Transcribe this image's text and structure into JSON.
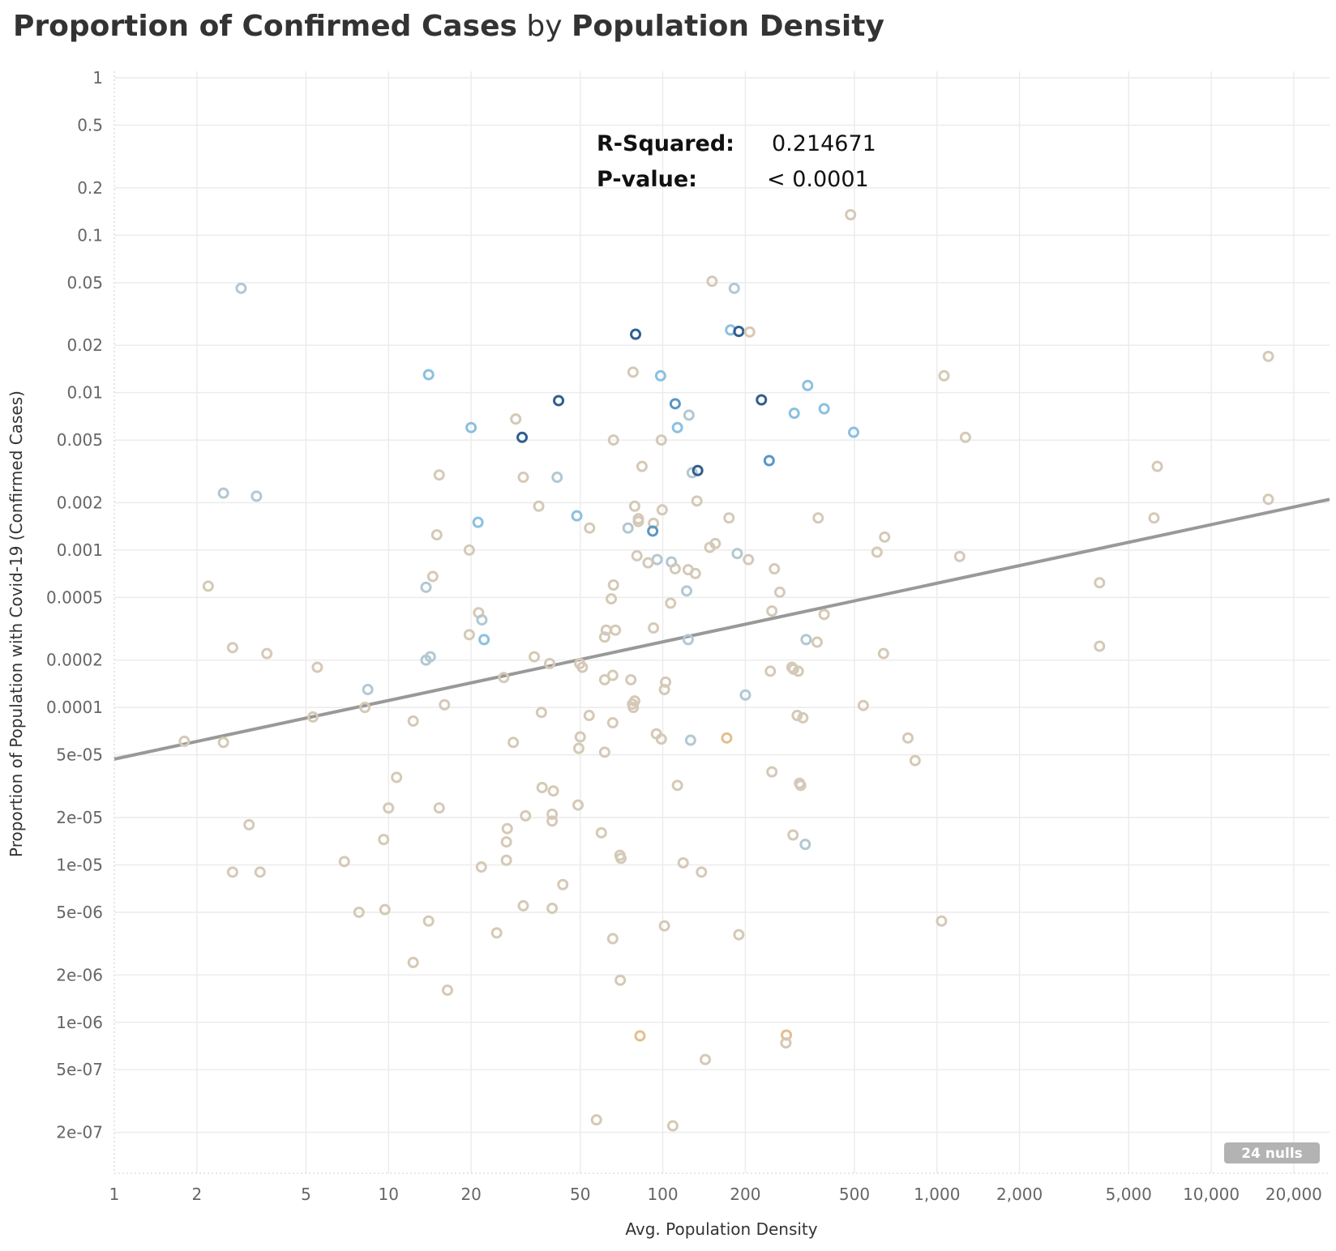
{
  "title": {
    "part1": "Proportion of Confirmed Cases",
    "part2": " by ",
    "part3": "Population Density"
  },
  "stats": {
    "r_squared_label": "R-Squared:",
    "r_squared_value": "0.214671",
    "p_value_label": "P-value:",
    "p_value_value": "< 0.0001"
  },
  "nulls_badge": "24 nulls",
  "chart_data": {
    "type": "scatter",
    "xlabel": "Avg. Population Density",
    "ylabel": "Proportion of Population with Covid-19 (Confirmed Cases)",
    "x_scale": "log",
    "y_scale": "log",
    "xlim": [
      1,
      27000
    ],
    "ylim": [
      1.1e-07,
      1.1
    ],
    "grid": true,
    "x_ticks": [
      {
        "value": 1,
        "label": "1"
      },
      {
        "value": 2,
        "label": "2"
      },
      {
        "value": 5,
        "label": "5"
      },
      {
        "value": 10,
        "label": "10"
      },
      {
        "value": 20,
        "label": "20"
      },
      {
        "value": 50,
        "label": "50"
      },
      {
        "value": 100,
        "label": "100"
      },
      {
        "value": 200,
        "label": "200"
      },
      {
        "value": 500,
        "label": "500"
      },
      {
        "value": 1000,
        "label": "1,000"
      },
      {
        "value": 2000,
        "label": "2,000"
      },
      {
        "value": 5000,
        "label": "5,000"
      },
      {
        "value": 10000,
        "label": "10,000"
      },
      {
        "value": 20000,
        "label": "20,000"
      }
    ],
    "y_ticks": [
      {
        "value": 1,
        "label": "1"
      },
      {
        "value": 0.5,
        "label": "0.5"
      },
      {
        "value": 0.2,
        "label": "0.2"
      },
      {
        "value": 0.1,
        "label": "0.1"
      },
      {
        "value": 0.05,
        "label": "0.05"
      },
      {
        "value": 0.02,
        "label": "0.02"
      },
      {
        "value": 0.01,
        "label": "0.01"
      },
      {
        "value": 0.005,
        "label": "0.005"
      },
      {
        "value": 0.002,
        "label": "0.002"
      },
      {
        "value": 0.001,
        "label": "0.001"
      },
      {
        "value": 0.0005,
        "label": "0.0005"
      },
      {
        "value": 0.0002,
        "label": "0.0002"
      },
      {
        "value": 0.0001,
        "label": "0.0001"
      },
      {
        "value": 5e-05,
        "label": "5e-05"
      },
      {
        "value": 2e-05,
        "label": "2e-05"
      },
      {
        "value": 1e-05,
        "label": "1e-05"
      },
      {
        "value": 5e-06,
        "label": "5e-06"
      },
      {
        "value": 2e-06,
        "label": "2e-06"
      },
      {
        "value": 1e-06,
        "label": "1e-06"
      },
      {
        "value": 5e-07,
        "label": "5e-07"
      },
      {
        "value": 2e-07,
        "label": "2e-07"
      }
    ],
    "trend_line": {
      "x": [
        1,
        27000
      ],
      "y": [
        4.7e-05,
        0.0021
      ],
      "color": "#999999"
    },
    "colors": {
      "beige": "#d5c9b7",
      "tan": "#e3bf8e",
      "grayblue": "#b2c8d2",
      "lightblue": "#8cc0e0",
      "midblue": "#5b96c6",
      "darkblue": "#2e5f8f"
    },
    "points": [
      {
        "x": 2.9,
        "y": 0.046,
        "c": "grayblue"
      },
      {
        "x": 2.5,
        "y": 0.0023,
        "c": "grayblue"
      },
      {
        "x": 3.3,
        "y": 0.0022,
        "c": "grayblue"
      },
      {
        "x": 2.2,
        "y": 0.00059,
        "c": "beige"
      },
      {
        "x": 2.7,
        "y": 0.00024,
        "c": "beige"
      },
      {
        "x": 3.6,
        "y": 0.00022,
        "c": "beige"
      },
      {
        "x": 1.8,
        "y": 6.1e-05,
        "c": "beige"
      },
      {
        "x": 2.5,
        "y": 6e-05,
        "c": "beige"
      },
      {
        "x": 3.1,
        "y": 1.8e-05,
        "c": "beige"
      },
      {
        "x": 2.7,
        "y": 9e-06,
        "c": "beige"
      },
      {
        "x": 3.4,
        "y": 9e-06,
        "c": "beige"
      },
      {
        "x": 5.5,
        "y": 0.00018,
        "c": "beige"
      },
      {
        "x": 5.3,
        "y": 8.7e-05,
        "c": "beige"
      },
      {
        "x": 8.4,
        "y": 0.00013,
        "c": "grayblue"
      },
      {
        "x": 8.2,
        "y": 0.0001,
        "c": "beige"
      },
      {
        "x": 6.9,
        "y": 1.05e-05,
        "c": "beige"
      },
      {
        "x": 7.8,
        "y": 5e-06,
        "c": "beige"
      },
      {
        "x": 9.7,
        "y": 5.2e-06,
        "c": "beige"
      },
      {
        "x": 9.6,
        "y": 1.45e-05,
        "c": "beige"
      },
      {
        "x": 10.0,
        "y": 2.3e-05,
        "c": "beige"
      },
      {
        "x": 10.7,
        "y": 3.6e-05,
        "c": "beige"
      },
      {
        "x": 12.3,
        "y": 8.2e-05,
        "c": "beige"
      },
      {
        "x": 12.3,
        "y": 2.4e-06,
        "c": "beige"
      },
      {
        "x": 14.0,
        "y": 0.013,
        "c": "lightblue"
      },
      {
        "x": 15.3,
        "y": 0.003,
        "c": "beige"
      },
      {
        "x": 15.0,
        "y": 0.00125,
        "c": "beige"
      },
      {
        "x": 14.5,
        "y": 0.00068,
        "c": "beige"
      },
      {
        "x": 13.7,
        "y": 0.00058,
        "c": "grayblue"
      },
      {
        "x": 14.2,
        "y": 0.00021,
        "c": "grayblue"
      },
      {
        "x": 13.7,
        "y": 0.0002,
        "c": "grayblue"
      },
      {
        "x": 16.0,
        "y": 0.000104,
        "c": "beige"
      },
      {
        "x": 15.3,
        "y": 2.3e-05,
        "c": "beige"
      },
      {
        "x": 14.0,
        "y": 4.4e-06,
        "c": "beige"
      },
      {
        "x": 16.4,
        "y": 1.6e-06,
        "c": "beige"
      },
      {
        "x": 20.0,
        "y": 0.006,
        "c": "lightblue"
      },
      {
        "x": 21.2,
        "y": 0.0015,
        "c": "lightblue"
      },
      {
        "x": 19.7,
        "y": 0.001,
        "c": "beige"
      },
      {
        "x": 21.3,
        "y": 0.0004,
        "c": "beige"
      },
      {
        "x": 21.9,
        "y": 0.00036,
        "c": "grayblue"
      },
      {
        "x": 19.7,
        "y": 0.00029,
        "c": "beige"
      },
      {
        "x": 22.3,
        "y": 0.00027,
        "c": "lightblue"
      },
      {
        "x": 21.8,
        "y": 9.7e-06,
        "c": "beige"
      },
      {
        "x": 24.8,
        "y": 3.7e-06,
        "c": "beige"
      },
      {
        "x": 26.3,
        "y": 0.000155,
        "c": "beige"
      },
      {
        "x": 27.1,
        "y": 1.7e-05,
        "c": "beige"
      },
      {
        "x": 26.9,
        "y": 1.4e-05,
        "c": "beige"
      },
      {
        "x": 26.9,
        "y": 1.07e-05,
        "c": "beige"
      },
      {
        "x": 28.5,
        "y": 6e-05,
        "c": "beige"
      },
      {
        "x": 29.1,
        "y": 0.0068,
        "c": "beige"
      },
      {
        "x": 30.7,
        "y": 0.0052,
        "c": "darkblue"
      },
      {
        "x": 31.0,
        "y": 0.0029,
        "c": "beige"
      },
      {
        "x": 31.6,
        "y": 2.05e-05,
        "c": "beige"
      },
      {
        "x": 31.0,
        "y": 5.5e-06,
        "c": "beige"
      },
      {
        "x": 34.0,
        "y": 0.00021,
        "c": "beige"
      },
      {
        "x": 35.3,
        "y": 0.0019,
        "c": "beige"
      },
      {
        "x": 36.1,
        "y": 9.3e-05,
        "c": "beige"
      },
      {
        "x": 36.3,
        "y": 3.1e-05,
        "c": "beige"
      },
      {
        "x": 38.7,
        "y": 0.00019,
        "c": "beige"
      },
      {
        "x": 39.9,
        "y": 2.95e-05,
        "c": "beige"
      },
      {
        "x": 39.5,
        "y": 2.1e-05,
        "c": "beige"
      },
      {
        "x": 39.5,
        "y": 1.9e-05,
        "c": "beige"
      },
      {
        "x": 39.5,
        "y": 5.3e-06,
        "c": "beige"
      },
      {
        "x": 41.7,
        "y": 0.0089,
        "c": "darkblue"
      },
      {
        "x": 41.2,
        "y": 0.0029,
        "c": "grayblue"
      },
      {
        "x": 43.2,
        "y": 7.5e-06,
        "c": "beige"
      },
      {
        "x": 48.6,
        "y": 0.00165,
        "c": "lightblue"
      },
      {
        "x": 49.8,
        "y": 0.00019,
        "c": "beige"
      },
      {
        "x": 50.9,
        "y": 0.00018,
        "c": "beige"
      },
      {
        "x": 50.0,
        "y": 6.5e-05,
        "c": "beige"
      },
      {
        "x": 49.4,
        "y": 5.5e-05,
        "c": "beige"
      },
      {
        "x": 49.1,
        "y": 2.4e-05,
        "c": "beige"
      },
      {
        "x": 54.1,
        "y": 0.00138,
        "c": "beige"
      },
      {
        "x": 53.9,
        "y": 8.9e-05,
        "c": "beige"
      },
      {
        "x": 57.3,
        "y": 2.4e-07,
        "c": "beige"
      },
      {
        "x": 59.7,
        "y": 1.6e-05,
        "c": "beige"
      },
      {
        "x": 66.1,
        "y": 0.005,
        "c": "beige"
      },
      {
        "x": 66.1,
        "y": 0.0006,
        "c": "beige"
      },
      {
        "x": 64.9,
        "y": 0.00049,
        "c": "beige"
      },
      {
        "x": 62.2,
        "y": 0.00031,
        "c": "beige"
      },
      {
        "x": 67.2,
        "y": 0.00031,
        "c": "beige"
      },
      {
        "x": 61.4,
        "y": 0.00028,
        "c": "beige"
      },
      {
        "x": 65.7,
        "y": 0.00016,
        "c": "beige"
      },
      {
        "x": 61.4,
        "y": 0.00015,
        "c": "beige"
      },
      {
        "x": 65.7,
        "y": 8e-05,
        "c": "beige"
      },
      {
        "x": 61.4,
        "y": 5.2e-05,
        "c": "beige"
      },
      {
        "x": 69.8,
        "y": 1.15e-05,
        "c": "beige"
      },
      {
        "x": 70.4,
        "y": 1.1e-05,
        "c": "beige"
      },
      {
        "x": 65.7,
        "y": 3.4e-06,
        "c": "beige"
      },
      {
        "x": 70.0,
        "y": 1.85e-06,
        "c": "beige"
      },
      {
        "x": 79.6,
        "y": 0.0235,
        "c": "darkblue"
      },
      {
        "x": 77.9,
        "y": 0.0135,
        "c": "beige"
      },
      {
        "x": 84.0,
        "y": 0.0034,
        "c": "beige"
      },
      {
        "x": 79.0,
        "y": 0.0019,
        "c": "beige"
      },
      {
        "x": 81.5,
        "y": 0.00158,
        "c": "beige"
      },
      {
        "x": 81.5,
        "y": 0.00152,
        "c": "beige"
      },
      {
        "x": 74.7,
        "y": 0.00138,
        "c": "grayblue"
      },
      {
        "x": 80.5,
        "y": 0.00092,
        "c": "beige"
      },
      {
        "x": 76.5,
        "y": 0.00015,
        "c": "beige"
      },
      {
        "x": 77.6,
        "y": 0.000105,
        "c": "beige"
      },
      {
        "x": 79.0,
        "y": 0.00011,
        "c": "beige"
      },
      {
        "x": 78.1,
        "y": 0.0001,
        "c": "beige"
      },
      {
        "x": 82.6,
        "y": 8.2e-07,
        "c": "tan"
      },
      {
        "x": 98.2,
        "y": 0.0128,
        "c": "lightblue"
      },
      {
        "x": 98.8,
        "y": 0.005,
        "c": "beige"
      },
      {
        "x": 99.5,
        "y": 0.0018,
        "c": "beige"
      },
      {
        "x": 92.5,
        "y": 0.00148,
        "c": "beige"
      },
      {
        "x": 91.9,
        "y": 0.00132,
        "c": "midblue"
      },
      {
        "x": 95.4,
        "y": 0.00087,
        "c": "grayblue"
      },
      {
        "x": 88.4,
        "y": 0.00083,
        "c": "beige"
      },
      {
        "x": 92.5,
        "y": 0.00032,
        "c": "beige"
      },
      {
        "x": 102.4,
        "y": 0.000145,
        "c": "beige"
      },
      {
        "x": 101.4,
        "y": 0.00013,
        "c": "beige"
      },
      {
        "x": 94.8,
        "y": 6.8e-05,
        "c": "beige"
      },
      {
        "x": 98.8,
        "y": 6.3e-05,
        "c": "beige"
      },
      {
        "x": 101.4,
        "y": 4.1e-06,
        "c": "beige"
      },
      {
        "x": 111.0,
        "y": 0.0085,
        "c": "midblue"
      },
      {
        "x": 113.1,
        "y": 0.006,
        "c": "lightblue"
      },
      {
        "x": 107.5,
        "y": 0.00084,
        "c": "grayblue"
      },
      {
        "x": 111.0,
        "y": 0.00076,
        "c": "beige"
      },
      {
        "x": 106.8,
        "y": 0.00046,
        "c": "beige"
      },
      {
        "x": 113.1,
        "y": 3.2e-05,
        "c": "beige"
      },
      {
        "x": 118.7,
        "y": 1.03e-05,
        "c": "beige"
      },
      {
        "x": 108.8,
        "y": 2.2e-07,
        "c": "beige"
      },
      {
        "x": 124.6,
        "y": 0.0072,
        "c": "grayblue"
      },
      {
        "x": 128.0,
        "y": 0.0031,
        "c": "grayblue"
      },
      {
        "x": 134.1,
        "y": 0.0032,
        "c": "darkblue"
      },
      {
        "x": 133.2,
        "y": 0.00205,
        "c": "beige"
      },
      {
        "x": 123.8,
        "y": 0.00075,
        "c": "beige"
      },
      {
        "x": 131.5,
        "y": 0.00071,
        "c": "beige"
      },
      {
        "x": 122.2,
        "y": 0.00055,
        "c": "grayblue"
      },
      {
        "x": 123.8,
        "y": 0.00027,
        "c": "grayblue"
      },
      {
        "x": 126.3,
        "y": 6.2e-05,
        "c": "grayblue"
      },
      {
        "x": 138.4,
        "y": 9e-06,
        "c": "beige"
      },
      {
        "x": 142.9,
        "y": 5.8e-07,
        "c": "beige"
      },
      {
        "x": 151.3,
        "y": 0.051,
        "c": "beige"
      },
      {
        "x": 148.4,
        "y": 0.00104,
        "c": "beige"
      },
      {
        "x": 155.4,
        "y": 0.0011,
        "c": "beige"
      },
      {
        "x": 174.4,
        "y": 0.0016,
        "c": "beige"
      },
      {
        "x": 171.1,
        "y": 6.4e-05,
        "c": "tan"
      },
      {
        "x": 182.3,
        "y": 0.046,
        "c": "grayblue"
      },
      {
        "x": 176.7,
        "y": 0.025,
        "c": "lightblue"
      },
      {
        "x": 189.4,
        "y": 0.0245,
        "c": "darkblue"
      },
      {
        "x": 207.4,
        "y": 0.0243,
        "c": "beige"
      },
      {
        "x": 186.9,
        "y": 0.00095,
        "c": "grayblue"
      },
      {
        "x": 205.3,
        "y": 0.00087,
        "c": "beige"
      },
      {
        "x": 200.1,
        "y": 0.00012,
        "c": "grayblue"
      },
      {
        "x": 189.4,
        "y": 3.6e-06,
        "c": "beige"
      },
      {
        "x": 229.0,
        "y": 0.009,
        "c": "darkblue"
      },
      {
        "x": 244.4,
        "y": 0.0037,
        "c": "midblue"
      },
      {
        "x": 255.3,
        "y": 0.00076,
        "c": "beige"
      },
      {
        "x": 267.2,
        "y": 0.00054,
        "c": "beige"
      },
      {
        "x": 250.0,
        "y": 0.00041,
        "c": "beige"
      },
      {
        "x": 246.8,
        "y": 0.00017,
        "c": "beige"
      },
      {
        "x": 250.0,
        "y": 3.9e-05,
        "c": "beige"
      },
      {
        "x": 282.4,
        "y": 8.3e-07,
        "c": "tan"
      },
      {
        "x": 281.2,
        "y": 7.4e-07,
        "c": "beige"
      },
      {
        "x": 337.6,
        "y": 0.0111,
        "c": "lightblue"
      },
      {
        "x": 301.6,
        "y": 0.0074,
        "c": "lightblue"
      },
      {
        "x": 387.7,
        "y": 0.0079,
        "c": "lightblue"
      },
      {
        "x": 368.7,
        "y": 0.0016,
        "c": "beige"
      },
      {
        "x": 387.7,
        "y": 0.00039,
        "c": "beige"
      },
      {
        "x": 333.2,
        "y": 0.00027,
        "c": "grayblue"
      },
      {
        "x": 365.5,
        "y": 0.00026,
        "c": "beige"
      },
      {
        "x": 295.8,
        "y": 0.00018,
        "c": "beige"
      },
      {
        "x": 299.9,
        "y": 0.000175,
        "c": "beige"
      },
      {
        "x": 312.0,
        "y": 0.00017,
        "c": "beige"
      },
      {
        "x": 309.1,
        "y": 8.9e-05,
        "c": "beige"
      },
      {
        "x": 324.2,
        "y": 8.6e-05,
        "c": "beige"
      },
      {
        "x": 315.2,
        "y": 3.3e-05,
        "c": "beige"
      },
      {
        "x": 318.4,
        "y": 3.2e-05,
        "c": "beige"
      },
      {
        "x": 298.5,
        "y": 1.55e-05,
        "c": "beige"
      },
      {
        "x": 330.8,
        "y": 1.35e-05,
        "c": "grayblue"
      },
      {
        "x": 484.0,
        "y": 0.135,
        "c": "beige"
      },
      {
        "x": 496.7,
        "y": 0.0056,
        "c": "lightblue"
      },
      {
        "x": 604.3,
        "y": 0.00097,
        "c": "beige"
      },
      {
        "x": 644.2,
        "y": 0.00121,
        "c": "beige"
      },
      {
        "x": 638.3,
        "y": 0.00022,
        "c": "beige"
      },
      {
        "x": 538.5,
        "y": 0.000103,
        "c": "beige"
      },
      {
        "x": 783.5,
        "y": 6.4e-05,
        "c": "beige"
      },
      {
        "x": 832.3,
        "y": 4.6e-05,
        "c": "beige"
      },
      {
        "x": 1061.0,
        "y": 0.0128,
        "c": "beige"
      },
      {
        "x": 1270.0,
        "y": 0.0052,
        "c": "beige"
      },
      {
        "x": 1209.7,
        "y": 0.00091,
        "c": "beige"
      },
      {
        "x": 1039.0,
        "y": 4.4e-06,
        "c": "beige"
      },
      {
        "x": 3914.7,
        "y": 0.00062,
        "c": "beige"
      },
      {
        "x": 3914.7,
        "y": 0.000245,
        "c": "beige"
      },
      {
        "x": 6360.5,
        "y": 0.0034,
        "c": "beige"
      },
      {
        "x": 6185.1,
        "y": 0.0016,
        "c": "beige"
      },
      {
        "x": 16153.0,
        "y": 0.017,
        "c": "beige"
      },
      {
        "x": 16153.0,
        "y": 0.0021,
        "c": "beige"
      }
    ]
  }
}
